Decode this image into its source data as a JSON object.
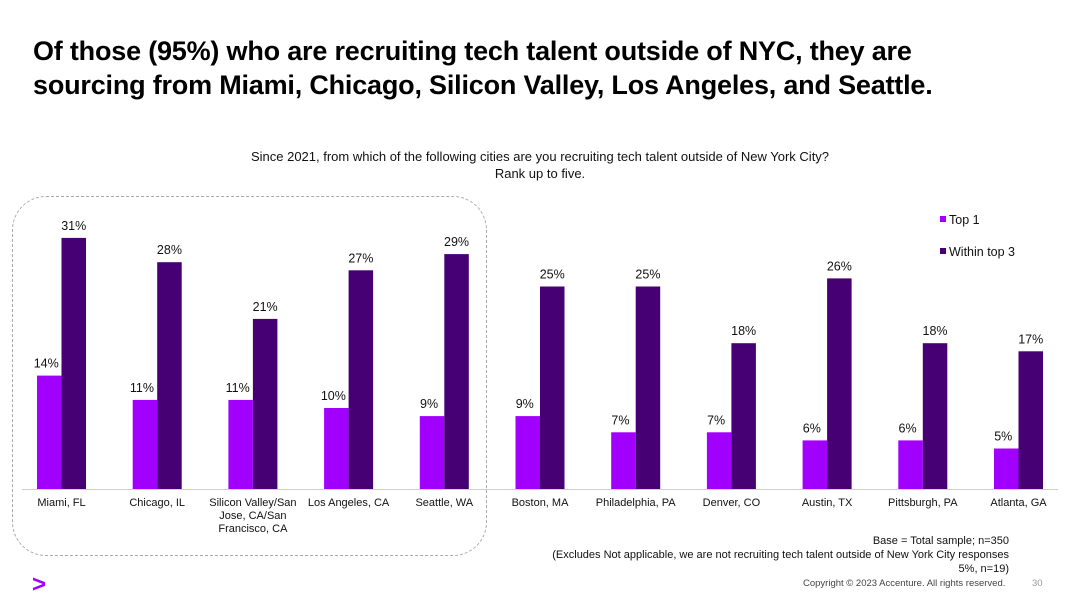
{
  "title": {
    "line1": "Of those (95%) who are recruiting tech talent outside of NYC, they are",
    "line2": "sourcing from Miami, Chicago, Silicon Valley, Los Angeles, and Seattle."
  },
  "question": {
    "line1": "Since 2021, from which of the following cities are you recruiting tech talent outside of New York City?",
    "line2": "Rank up to five."
  },
  "footnote": {
    "line1": "Base = Total sample; n=350",
    "line2": "(Excludes Not applicable, we are not recruiting tech talent outside of New York City responses",
    "line3": "5%, n=19)"
  },
  "copyright": "Copyright © 2023 Accenture. All rights reserved.",
  "page_number": "30",
  "logo_glyph": ">",
  "colors": {
    "top1": "#a100ff",
    "top3": "#460073",
    "accent": "#a100ff"
  },
  "chart_data": {
    "type": "bar",
    "title": "Since 2021, from which of the following cities are you recruiting tech talent outside of New York City? Rank up to five.",
    "xlabel": "",
    "ylabel": "",
    "ylim": [
      0,
      34
    ],
    "grid": false,
    "legend": "top-right",
    "categories": [
      [
        "Miami, FL"
      ],
      [
        "Chicago, IL"
      ],
      [
        "Silicon Valley/San",
        "Jose, CA/San",
        "Francisco, CA"
      ],
      [
        "Los Angeles, CA"
      ],
      [
        "Seattle, WA"
      ],
      [
        "Boston, MA"
      ],
      [
        "Philadelphia, PA"
      ],
      [
        "Denver, CO"
      ],
      [
        "Austin, TX"
      ],
      [
        "Pittsburgh, PA"
      ],
      [
        "Atlanta, GA"
      ]
    ],
    "series": [
      {
        "name": "Top 1",
        "color": "#a100ff",
        "values": [
          14,
          11,
          11,
          10,
          9,
          9,
          7,
          7,
          6,
          6,
          5
        ],
        "labels": [
          "14%",
          "11%",
          "11%",
          "10%",
          "9%",
          "9%",
          "7%",
          "7%",
          "6%",
          "6%",
          "5%"
        ]
      },
      {
        "name": "Within top 3",
        "color": "#460073",
        "values": [
          31,
          28,
          21,
          27,
          29,
          25,
          25,
          18,
          26,
          18,
          17
        ],
        "labels": [
          "31%",
          "28%",
          "21%",
          "27%",
          "29%",
          "25%",
          "25%",
          "18%",
          "26%",
          "18%",
          "17%"
        ]
      }
    ],
    "highlighted_categories": 5
  }
}
